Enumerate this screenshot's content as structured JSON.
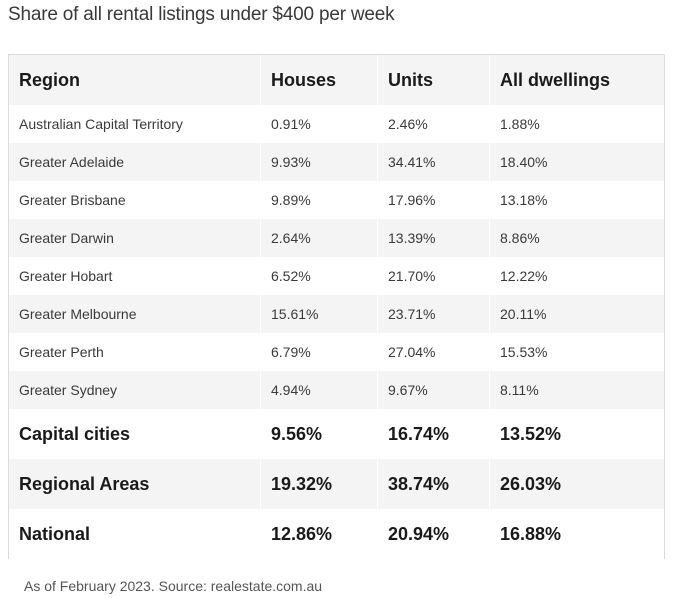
{
  "title": "Share of all rental listings under $400 per week",
  "table": {
    "headers": [
      "Region",
      "Houses",
      "Units",
      "All dwellings"
    ],
    "rows": [
      [
        "Australian Capital Territory",
        "0.91%",
        "2.46%",
        "1.88%"
      ],
      [
        "Greater Adelaide",
        "9.93%",
        "34.41%",
        "18.40%"
      ],
      [
        "Greater Brisbane",
        "9.89%",
        "17.96%",
        "13.18%"
      ],
      [
        "Greater Darwin",
        "2.64%",
        "13.39%",
        "8.86%"
      ],
      [
        "Greater Hobart",
        "6.52%",
        "21.70%",
        "12.22%"
      ],
      [
        "Greater Melbourne",
        "15.61%",
        "23.71%",
        "20.11%"
      ],
      [
        "Greater Perth",
        "6.79%",
        "27.04%",
        "15.53%"
      ],
      [
        "Greater Sydney",
        "4.94%",
        "9.67%",
        "8.11%"
      ]
    ],
    "summary_rows": [
      [
        "Capital cities",
        "9.56%",
        "16.74%",
        "13.52%"
      ],
      [
        "Regional Areas",
        "19.32%",
        "38.74%",
        "26.03%"
      ],
      [
        "National",
        "12.86%",
        "20.94%",
        "16.88%"
      ]
    ]
  },
  "source": "As of February 2023. Source: realestate.com.au"
}
